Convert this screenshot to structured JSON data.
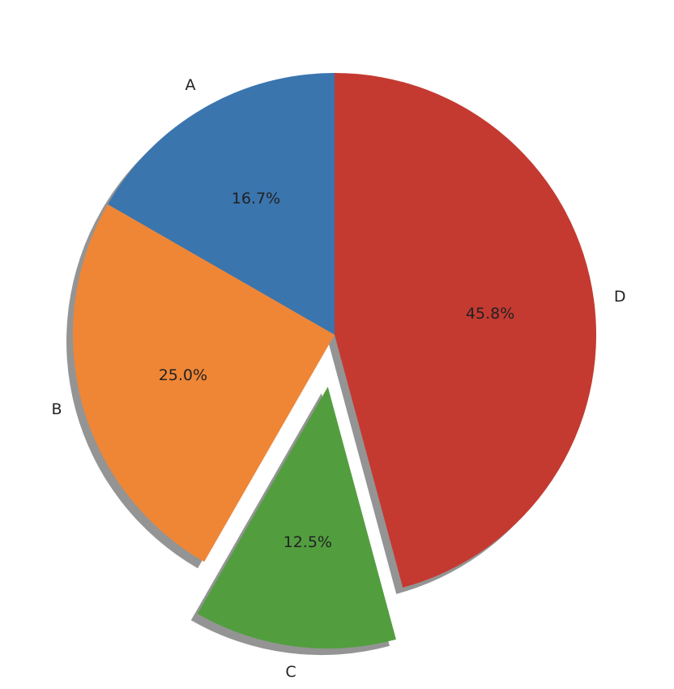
{
  "chart_data": {
    "type": "pie",
    "categories": [
      "A",
      "B",
      "C",
      "D"
    ],
    "values": [
      16.7,
      25.0,
      12.5,
      45.8
    ],
    "value_labels": [
      "16.7%",
      "25.0%",
      "12.5%",
      "45.8%"
    ],
    "colors": [
      "#3a75ae",
      "#ef8636",
      "#529e3f",
      "#c43a31"
    ],
    "explode": [
      0,
      0,
      0.2,
      0
    ],
    "shadow": true
  }
}
